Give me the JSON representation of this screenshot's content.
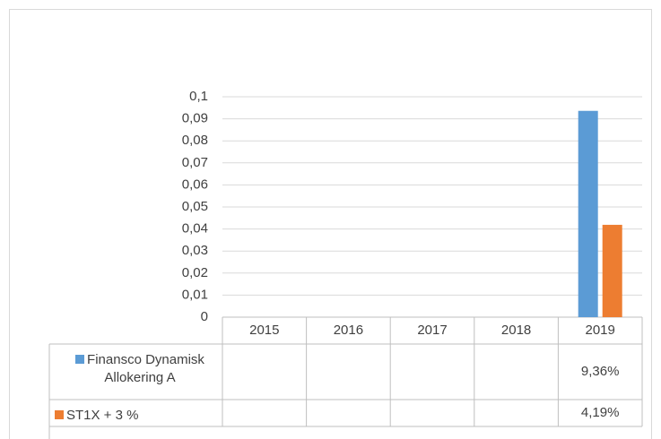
{
  "chart_data": {
    "type": "bar",
    "categories": [
      "2015",
      "2016",
      "2017",
      "2018",
      "2019"
    ],
    "series": [
      {
        "name": "Finansco Dynamisk Allokering A",
        "color": "#5b9bd5",
        "values": [
          null,
          null,
          null,
          null,
          0.0936
        ],
        "value_labels": [
          null,
          null,
          null,
          null,
          "9,36%"
        ]
      },
      {
        "name": "ST1X + 3 %",
        "color": "#ed7d31",
        "values": [
          null,
          null,
          null,
          null,
          0.0419
        ],
        "value_labels": [
          null,
          null,
          null,
          null,
          "4,19%"
        ]
      }
    ],
    "ylim": [
      0,
      0.1
    ],
    "yticks": [
      0,
      {
        "value": 0.01,
        "label": "0,01"
      },
      {
        "value": 0.02,
        "label": "0,02"
      },
      {
        "value": 0.03,
        "label": "0,03"
      },
      {
        "value": 0.04,
        "label": "0,04"
      },
      {
        "value": 0.05,
        "label": "0,05"
      },
      {
        "value": 0.06,
        "label": "0,06"
      },
      {
        "value": 0.07,
        "label": "0,07"
      },
      {
        "value": 0.08,
        "label": "0,08"
      },
      {
        "value": 0.09,
        "label": "0,09"
      },
      {
        "value": 0.1,
        "label": "0,1"
      }
    ],
    "grid": true
  }
}
